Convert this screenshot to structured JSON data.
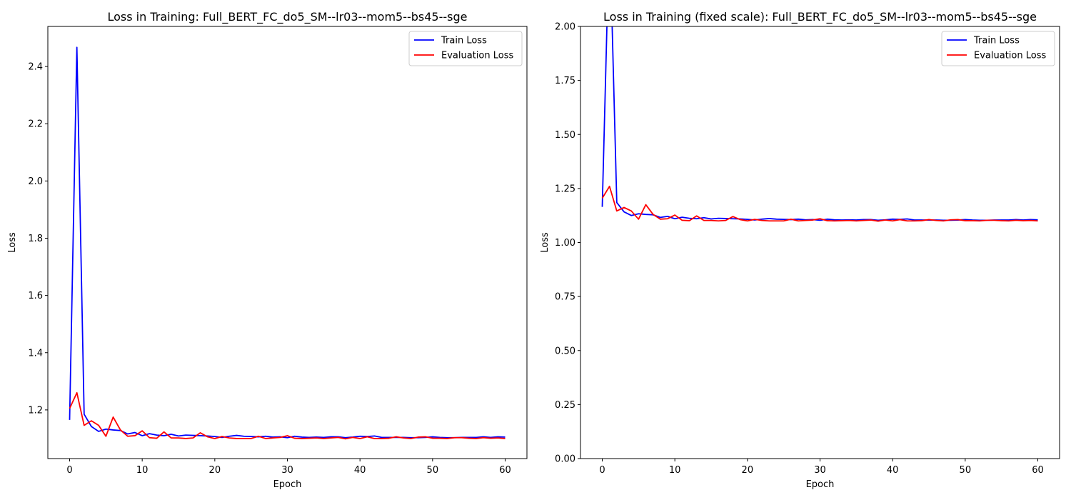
{
  "chart_data": [
    {
      "type": "line",
      "title": "Loss in Training: Full_BERT_FC_do5_SM--lr03--mom5--bs45--sge",
      "xlabel": "Epoch",
      "ylabel": "Loss",
      "xlim": [
        -3,
        63
      ],
      "ylim": [
        1.03,
        2.54
      ],
      "xticks": [
        0,
        10,
        20,
        30,
        40,
        50,
        60
      ],
      "yticks": [
        1.2,
        1.4,
        1.6,
        1.8,
        2.0,
        2.2,
        2.4
      ],
      "ytick_format": 1,
      "legend": "top-right",
      "grid": false,
      "series": [
        {
          "name": "Train Loss",
          "color": "#0000ff",
          "x": [
            0,
            1,
            2,
            3,
            4,
            5,
            6,
            7,
            8,
            9,
            10,
            11,
            12,
            13,
            14,
            15,
            16,
            17,
            18,
            19,
            20,
            21,
            22,
            23,
            24,
            25,
            26,
            27,
            28,
            29,
            30,
            31,
            32,
            33,
            34,
            35,
            36,
            37,
            38,
            39,
            40,
            41,
            42,
            43,
            44,
            45,
            46,
            47,
            48,
            49,
            50,
            51,
            52,
            53,
            54,
            55,
            56,
            57,
            58,
            59,
            60
          ],
          "values": [
            1.165,
            2.467,
            1.185,
            1.142,
            1.125,
            1.133,
            1.13,
            1.128,
            1.116,
            1.121,
            1.11,
            1.117,
            1.112,
            1.11,
            1.115,
            1.109,
            1.112,
            1.111,
            1.11,
            1.109,
            1.107,
            1.104,
            1.108,
            1.111,
            1.108,
            1.107,
            1.106,
            1.108,
            1.105,
            1.106,
            1.103,
            1.108,
            1.105,
            1.104,
            1.105,
            1.104,
            1.106,
            1.106,
            1.103,
            1.105,
            1.108,
            1.107,
            1.109,
            1.104,
            1.104,
            1.104,
            1.104,
            1.103,
            1.103,
            1.104,
            1.106,
            1.104,
            1.103,
            1.103,
            1.104,
            1.104,
            1.104,
            1.106,
            1.104,
            1.106,
            1.105
          ]
        },
        {
          "name": "Evaluation Loss",
          "color": "#ff0000",
          "x": [
            0,
            1,
            2,
            3,
            4,
            5,
            6,
            7,
            8,
            9,
            10,
            11,
            12,
            13,
            14,
            15,
            16,
            17,
            18,
            19,
            20,
            21,
            22,
            23,
            24,
            25,
            26,
            27,
            28,
            29,
            30,
            31,
            32,
            33,
            34,
            35,
            36,
            37,
            38,
            39,
            40,
            41,
            42,
            43,
            44,
            45,
            46,
            47,
            48,
            49,
            50,
            51,
            52,
            53,
            54,
            55,
            56,
            57,
            58,
            59,
            60
          ],
          "values": [
            1.205,
            1.26,
            1.146,
            1.162,
            1.146,
            1.108,
            1.175,
            1.13,
            1.108,
            1.11,
            1.127,
            1.103,
            1.101,
            1.123,
            1.102,
            1.102,
            1.1,
            1.102,
            1.12,
            1.106,
            1.1,
            1.107,
            1.102,
            1.1,
            1.1,
            1.1,
            1.108,
            1.1,
            1.102,
            1.104,
            1.11,
            1.101,
            1.1,
            1.101,
            1.102,
            1.1,
            1.102,
            1.104,
            1.099,
            1.104,
            1.1,
            1.106,
            1.1,
            1.1,
            1.101,
            1.106,
            1.102,
            1.1,
            1.105,
            1.106,
            1.101,
            1.101,
            1.1,
            1.103,
            1.103,
            1.101,
            1.1,
            1.103,
            1.101,
            1.102,
            1.1
          ]
        }
      ]
    },
    {
      "type": "line",
      "title": "Loss in Training (fixed scale): Full_BERT_FC_do5_SM--lr03--mom5--bs45--sge",
      "xlabel": "Epoch",
      "ylabel": "Loss",
      "xlim": [
        -3,
        63
      ],
      "ylim": [
        0,
        2.0
      ],
      "xticks": [
        0,
        10,
        20,
        30,
        40,
        50,
        60
      ],
      "yticks": [
        0.0,
        0.25,
        0.5,
        0.75,
        1.0,
        1.25,
        1.5,
        1.75,
        2.0
      ],
      "ytick_format": 2,
      "legend": "top-right",
      "grid": false,
      "series": [
        {
          "name": "Train Loss",
          "color": "#0000ff",
          "x": [
            0,
            1,
            2,
            3,
            4,
            5,
            6,
            7,
            8,
            9,
            10,
            11,
            12,
            13,
            14,
            15,
            16,
            17,
            18,
            19,
            20,
            21,
            22,
            23,
            24,
            25,
            26,
            27,
            28,
            29,
            30,
            31,
            32,
            33,
            34,
            35,
            36,
            37,
            38,
            39,
            40,
            41,
            42,
            43,
            44,
            45,
            46,
            47,
            48,
            49,
            50,
            51,
            52,
            53,
            54,
            55,
            56,
            57,
            58,
            59,
            60
          ],
          "values": [
            1.165,
            2.467,
            1.185,
            1.142,
            1.125,
            1.133,
            1.13,
            1.128,
            1.116,
            1.121,
            1.11,
            1.117,
            1.112,
            1.11,
            1.115,
            1.109,
            1.112,
            1.111,
            1.11,
            1.109,
            1.107,
            1.104,
            1.108,
            1.111,
            1.108,
            1.107,
            1.106,
            1.108,
            1.105,
            1.106,
            1.103,
            1.108,
            1.105,
            1.104,
            1.105,
            1.104,
            1.106,
            1.106,
            1.103,
            1.105,
            1.108,
            1.107,
            1.109,
            1.104,
            1.104,
            1.104,
            1.104,
            1.103,
            1.103,
            1.104,
            1.106,
            1.104,
            1.103,
            1.103,
            1.104,
            1.104,
            1.104,
            1.106,
            1.104,
            1.106,
            1.105
          ]
        },
        {
          "name": "Evaluation Loss",
          "color": "#ff0000",
          "x": [
            0,
            1,
            2,
            3,
            4,
            5,
            6,
            7,
            8,
            9,
            10,
            11,
            12,
            13,
            14,
            15,
            16,
            17,
            18,
            19,
            20,
            21,
            22,
            23,
            24,
            25,
            26,
            27,
            28,
            29,
            30,
            31,
            32,
            33,
            34,
            35,
            36,
            37,
            38,
            39,
            40,
            41,
            42,
            43,
            44,
            45,
            46,
            47,
            48,
            49,
            50,
            51,
            52,
            53,
            54,
            55,
            56,
            57,
            58,
            59,
            60
          ],
          "values": [
            1.205,
            1.26,
            1.146,
            1.162,
            1.146,
            1.108,
            1.175,
            1.13,
            1.108,
            1.11,
            1.127,
            1.103,
            1.101,
            1.123,
            1.102,
            1.102,
            1.1,
            1.102,
            1.12,
            1.106,
            1.1,
            1.107,
            1.102,
            1.1,
            1.1,
            1.1,
            1.108,
            1.1,
            1.102,
            1.104,
            1.11,
            1.101,
            1.1,
            1.101,
            1.102,
            1.1,
            1.102,
            1.104,
            1.099,
            1.104,
            1.1,
            1.106,
            1.1,
            1.1,
            1.101,
            1.106,
            1.102,
            1.1,
            1.105,
            1.106,
            1.101,
            1.101,
            1.1,
            1.103,
            1.103,
            1.101,
            1.1,
            1.103,
            1.101,
            1.102,
            1.1
          ]
        }
      ]
    }
  ]
}
